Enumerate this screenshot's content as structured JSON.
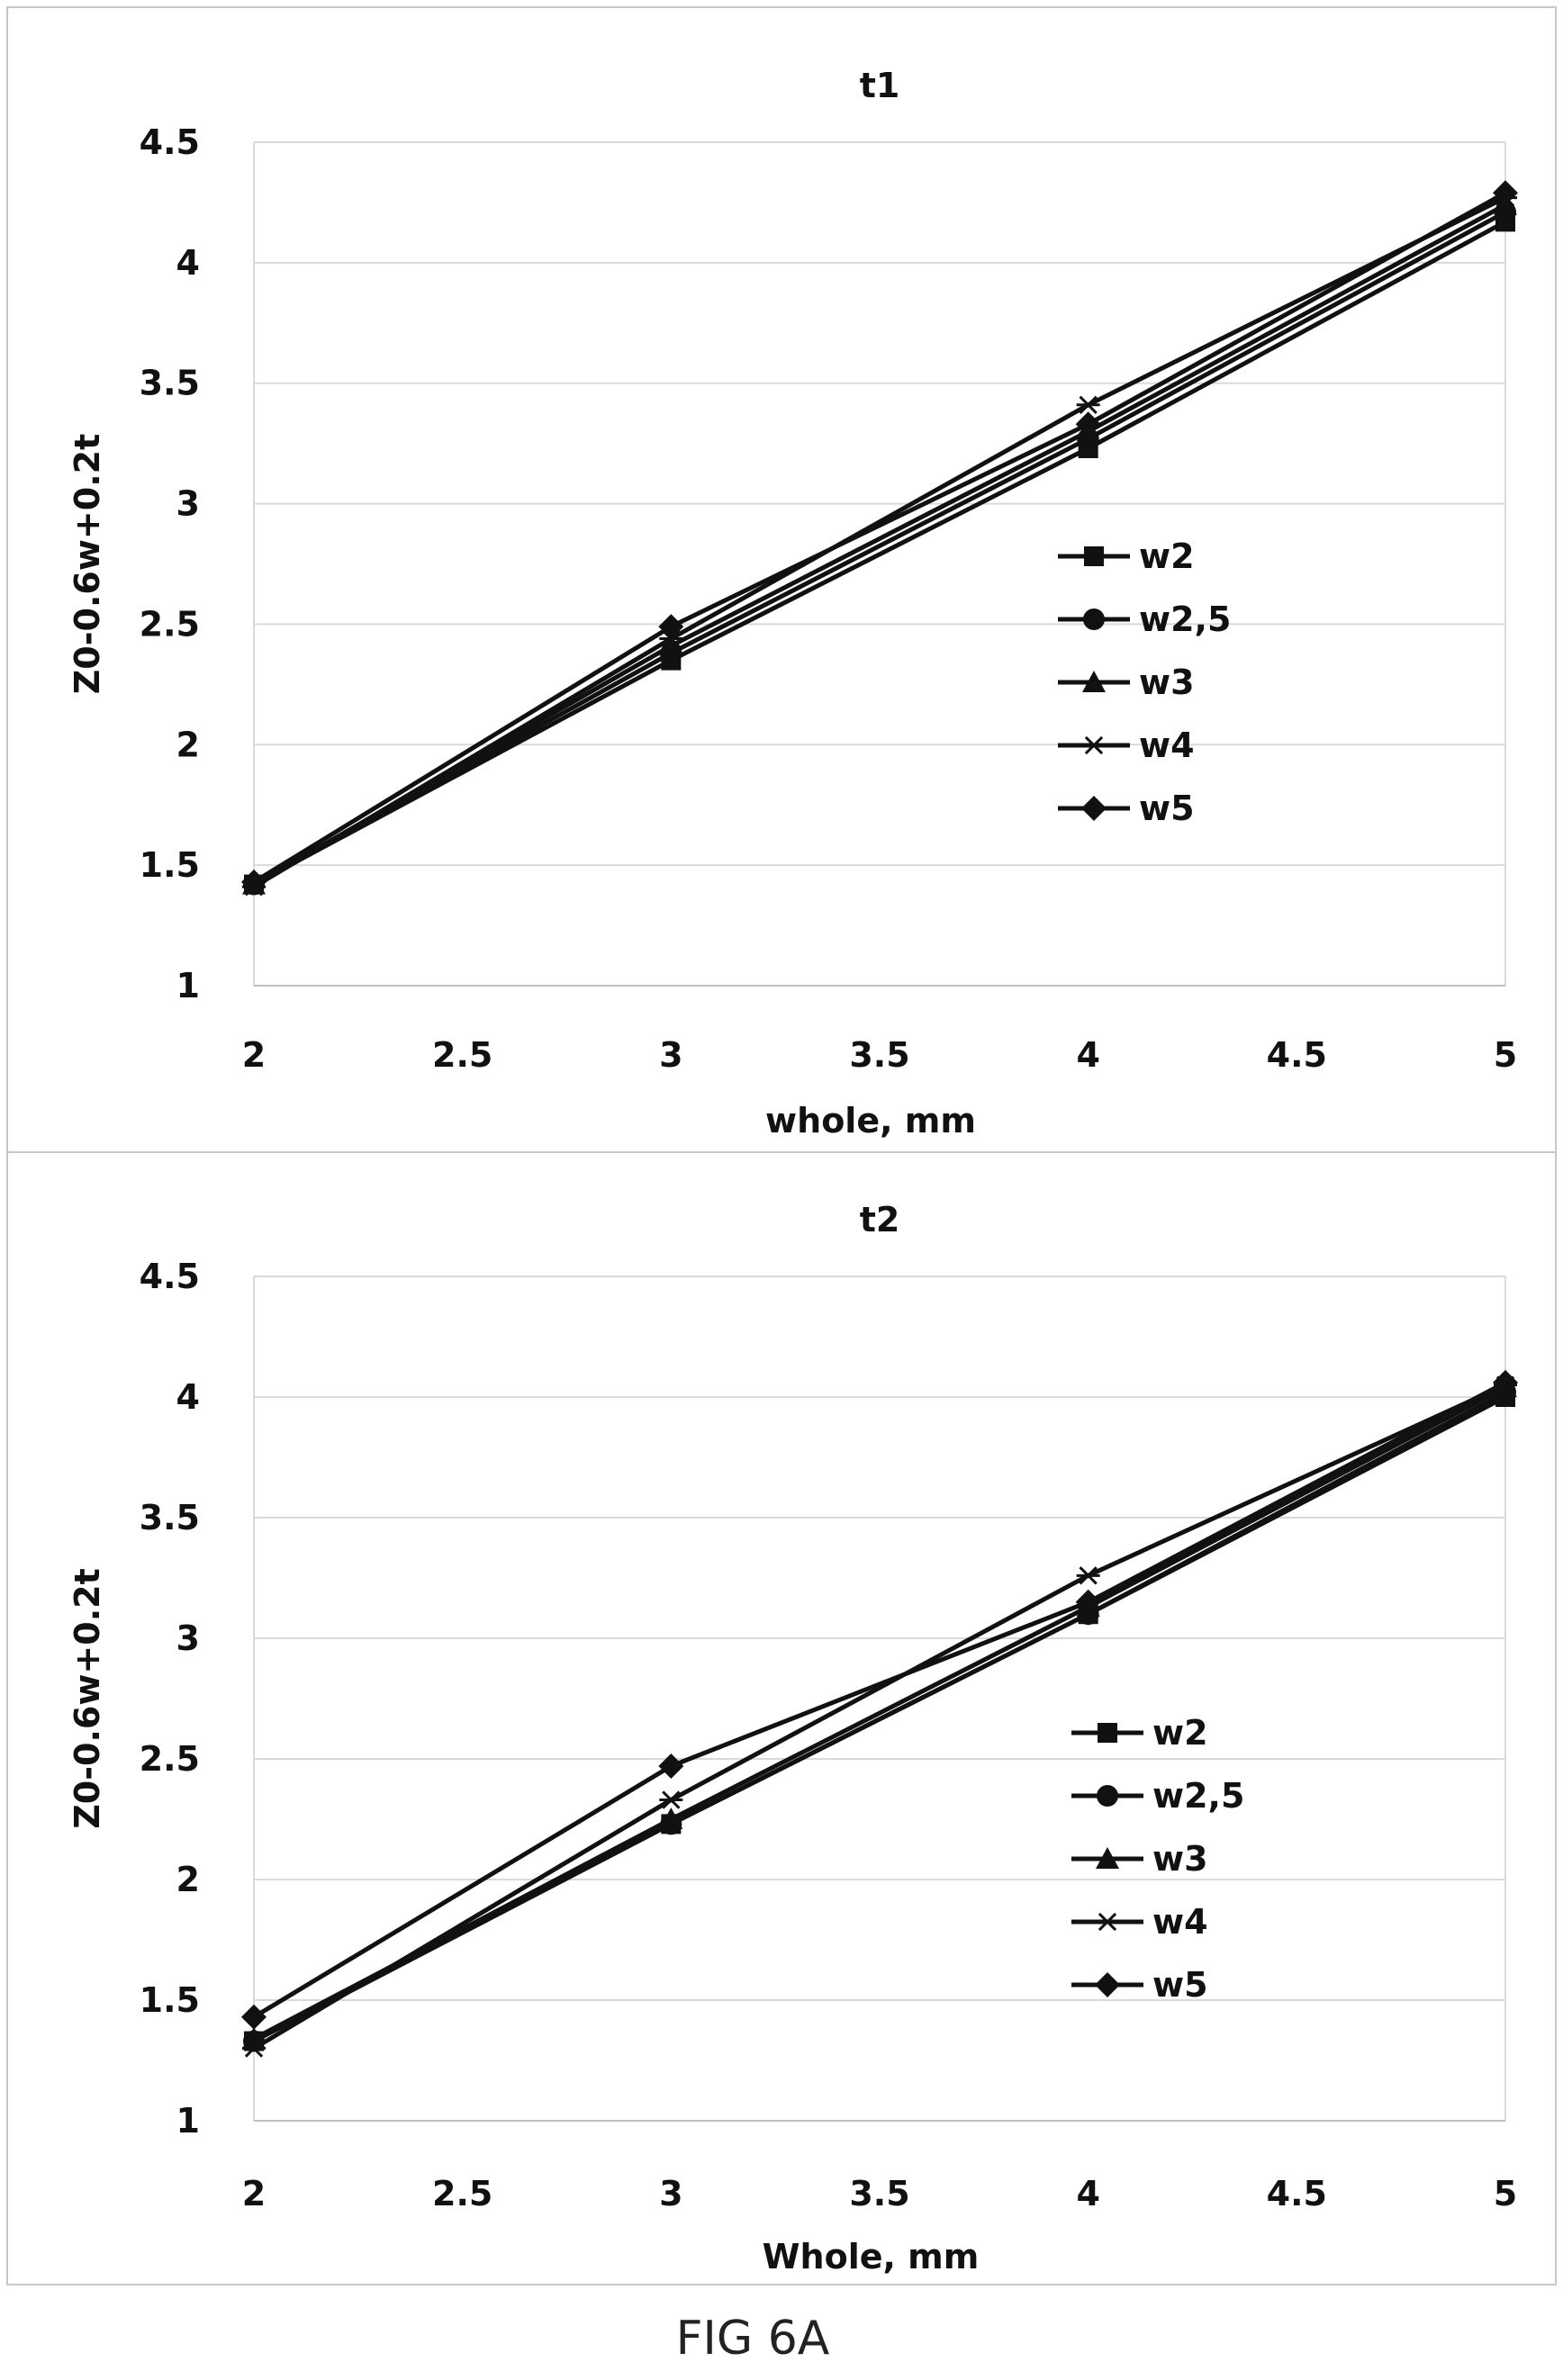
{
  "figure_caption": "FIG 6A",
  "chart_data": [
    {
      "type": "line",
      "title": "t1",
      "xlabel": "whole, mm",
      "ylabel": "Z0-0.6w+0.2t",
      "xlim": [
        2,
        5
      ],
      "ylim": [
        1,
        4.5
      ],
      "xticks": [
        "2",
        "2.5",
        "3",
        "3.5",
        "4",
        "4.5",
        "5"
      ],
      "yticks": [
        "1",
        "1.5",
        "2",
        "2.5",
        "3",
        "3.5",
        "4",
        "4.5"
      ],
      "grid": "horizontal",
      "legend_position": "right",
      "x": [
        2,
        3,
        4,
        5
      ],
      "series": [
        {
          "name": "w2",
          "marker": "square",
          "values": [
            1.42,
            2.35,
            3.23,
            4.17
          ]
        },
        {
          "name": "w2,5",
          "marker": "circle",
          "values": [
            1.42,
            2.38,
            3.27,
            4.21
          ]
        },
        {
          "name": "w3",
          "marker": "triangle",
          "values": [
            1.42,
            2.41,
            3.3,
            4.24
          ]
        },
        {
          "name": "w4",
          "marker": "asterisk",
          "values": [
            1.41,
            2.44,
            3.41,
            4.27
          ]
        },
        {
          "name": "w5",
          "marker": "diamond",
          "values": [
            1.43,
            2.49,
            3.33,
            4.29
          ]
        }
      ]
    },
    {
      "type": "line",
      "title": "t2",
      "xlabel": "Whole, mm",
      "ylabel": "Z0-0.6w+0.2t",
      "xlim": [
        2,
        5
      ],
      "ylim": [
        1,
        4.5
      ],
      "xticks": [
        "2",
        "2.5",
        "3",
        "3.5",
        "4",
        "4.5",
        "5"
      ],
      "yticks": [
        "1",
        "1.5",
        "2",
        "2.5",
        "3",
        "3.5",
        "4",
        "4.5"
      ],
      "grid": "horizontal",
      "legend_position": "right",
      "x": [
        2,
        3,
        4,
        5
      ],
      "series": [
        {
          "name": "w2",
          "marker": "square",
          "values": [
            1.33,
            2.23,
            3.1,
            4.0
          ]
        },
        {
          "name": "w2,5",
          "marker": "circle",
          "values": [
            1.33,
            2.23,
            3.1,
            4.02
          ]
        },
        {
          "name": "w3",
          "marker": "triangle",
          "values": [
            1.34,
            2.25,
            3.13,
            4.04
          ]
        },
        {
          "name": "w4",
          "marker": "asterisk",
          "values": [
            1.3,
            2.33,
            3.26,
            4.05
          ]
        },
        {
          "name": "w5",
          "marker": "diamond",
          "values": [
            1.43,
            2.47,
            3.15,
            4.06
          ]
        }
      ]
    }
  ]
}
